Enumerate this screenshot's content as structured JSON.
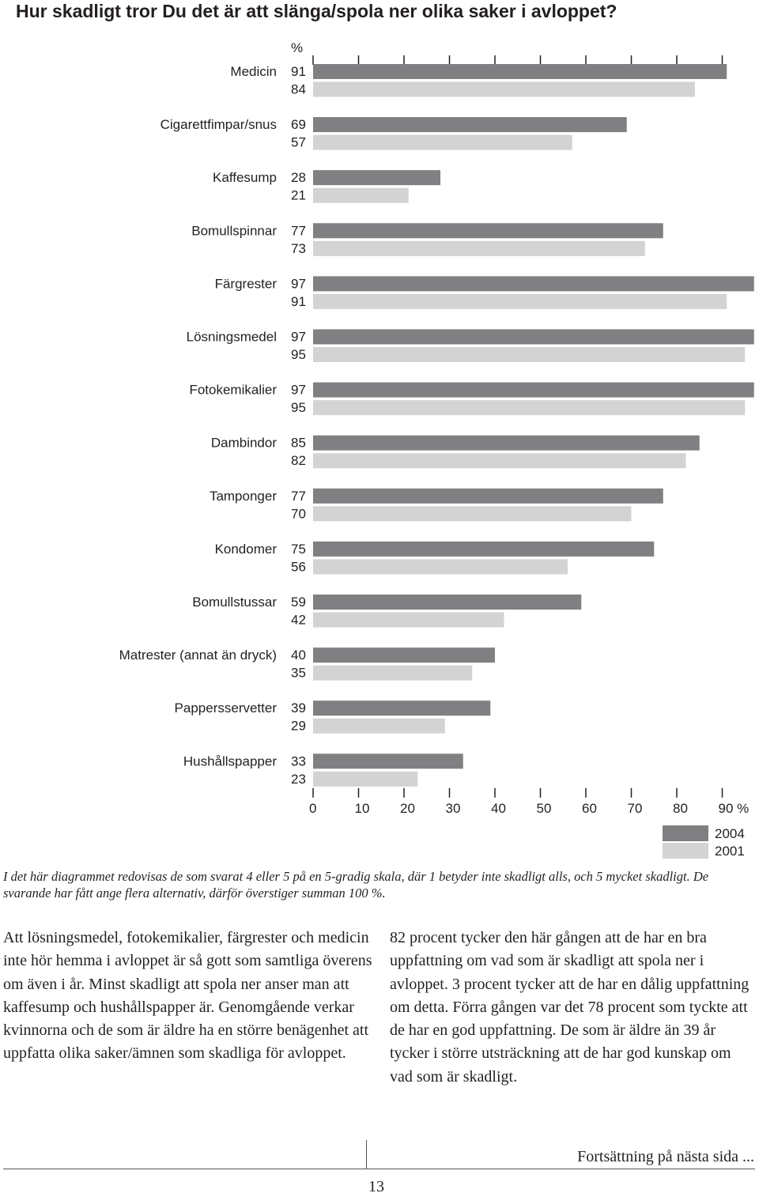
{
  "page": {
    "title": "Hur skadligt tror Du det är att slänga/spola ner olika saker i avloppet?",
    "note": "I det här diagrammet redovisas de som svarat 4 eller 5 på en 5-gradig skala, där 1 betyder inte skadligt alls, och 5 mycket skadligt. De svarande har fått ange flera alternativ, därför överstiger summan 100 %.",
    "paragraph_left": "Att lösningsmedel, fotokemikalier, färgrester och medicin inte hör hemma i avloppet är så gott som samtliga överens om även i år. Minst skadligt att spola ner anser man att kaffesump och hushållspapper är. Genomgående verkar kvinnorna och de som är äldre ha en större benägenhet att uppfatta olika saker/ämnen som skadliga för avloppet.",
    "paragraph_right": "82 procent tycker den här gången att de har en bra uppfattning om vad som är skadligt att spola ner i avloppet. 3 procent tycker att de har en dålig uppfattning om detta. Förra gången var det 78 procent som tyckte att de har en god uppfattning. De som är äldre än 39 år tycker i större utsträckning att de har god kunskap om vad som är skadligt.",
    "continue_text": "Fortsättning på nästa sida ...",
    "page_number": "13"
  },
  "chart_data": {
    "type": "bar",
    "orientation": "horizontal",
    "title": "Hur skadligt tror Du det är att slänga/spola ner olika saker i avloppet?",
    "value_header": "%",
    "categories": [
      "Medicin",
      "Cigarettfimpar/snus",
      "Kaffesump",
      "Bomullspinnar",
      "Färgrester",
      "Lösningsmedel",
      "Fotokemikalier",
      "Dambindor",
      "Tamponger",
      "Kondomer",
      "Bomullstussar",
      "Matrester (annat än dryck)",
      "Pappersservetter",
      "Hushållspapper"
    ],
    "series": [
      {
        "name": "2004",
        "color": "#808083",
        "values": [
          91,
          69,
          28,
          77,
          97,
          97,
          97,
          85,
          77,
          75,
          59,
          40,
          39,
          33
        ]
      },
      {
        "name": "2001",
        "color": "#d3d3d4",
        "values": [
          84,
          57,
          21,
          73,
          91,
          95,
          95,
          82,
          70,
          56,
          42,
          35,
          29,
          23
        ]
      }
    ],
    "xlim": [
      0,
      97
    ],
    "x_ticks": [
      "0",
      "10",
      "20",
      "30",
      "40",
      "50",
      "60",
      "70",
      "80",
      "90 %"
    ],
    "grid": false,
    "legend_position": "bottom-right"
  }
}
